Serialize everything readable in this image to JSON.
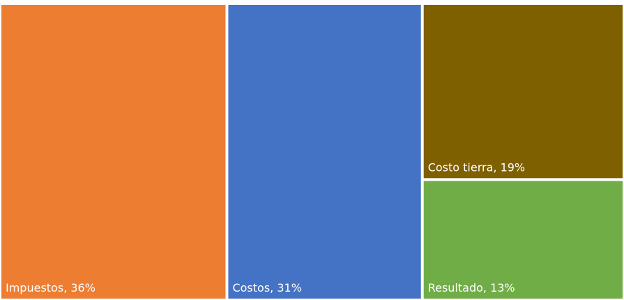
{
  "chart_data": {
    "type": "treemap",
    "categories": [
      "Impuestos",
      "Costos",
      "Costo tierra",
      "Resultado"
    ],
    "values": [
      36,
      31,
      19,
      13
    ],
    "value_labels": [
      "36%",
      "31%",
      "19%",
      "13%"
    ],
    "colors": [
      "#ED7D31",
      "#4472C4",
      "#7F6000",
      "#70AD47"
    ]
  }
}
